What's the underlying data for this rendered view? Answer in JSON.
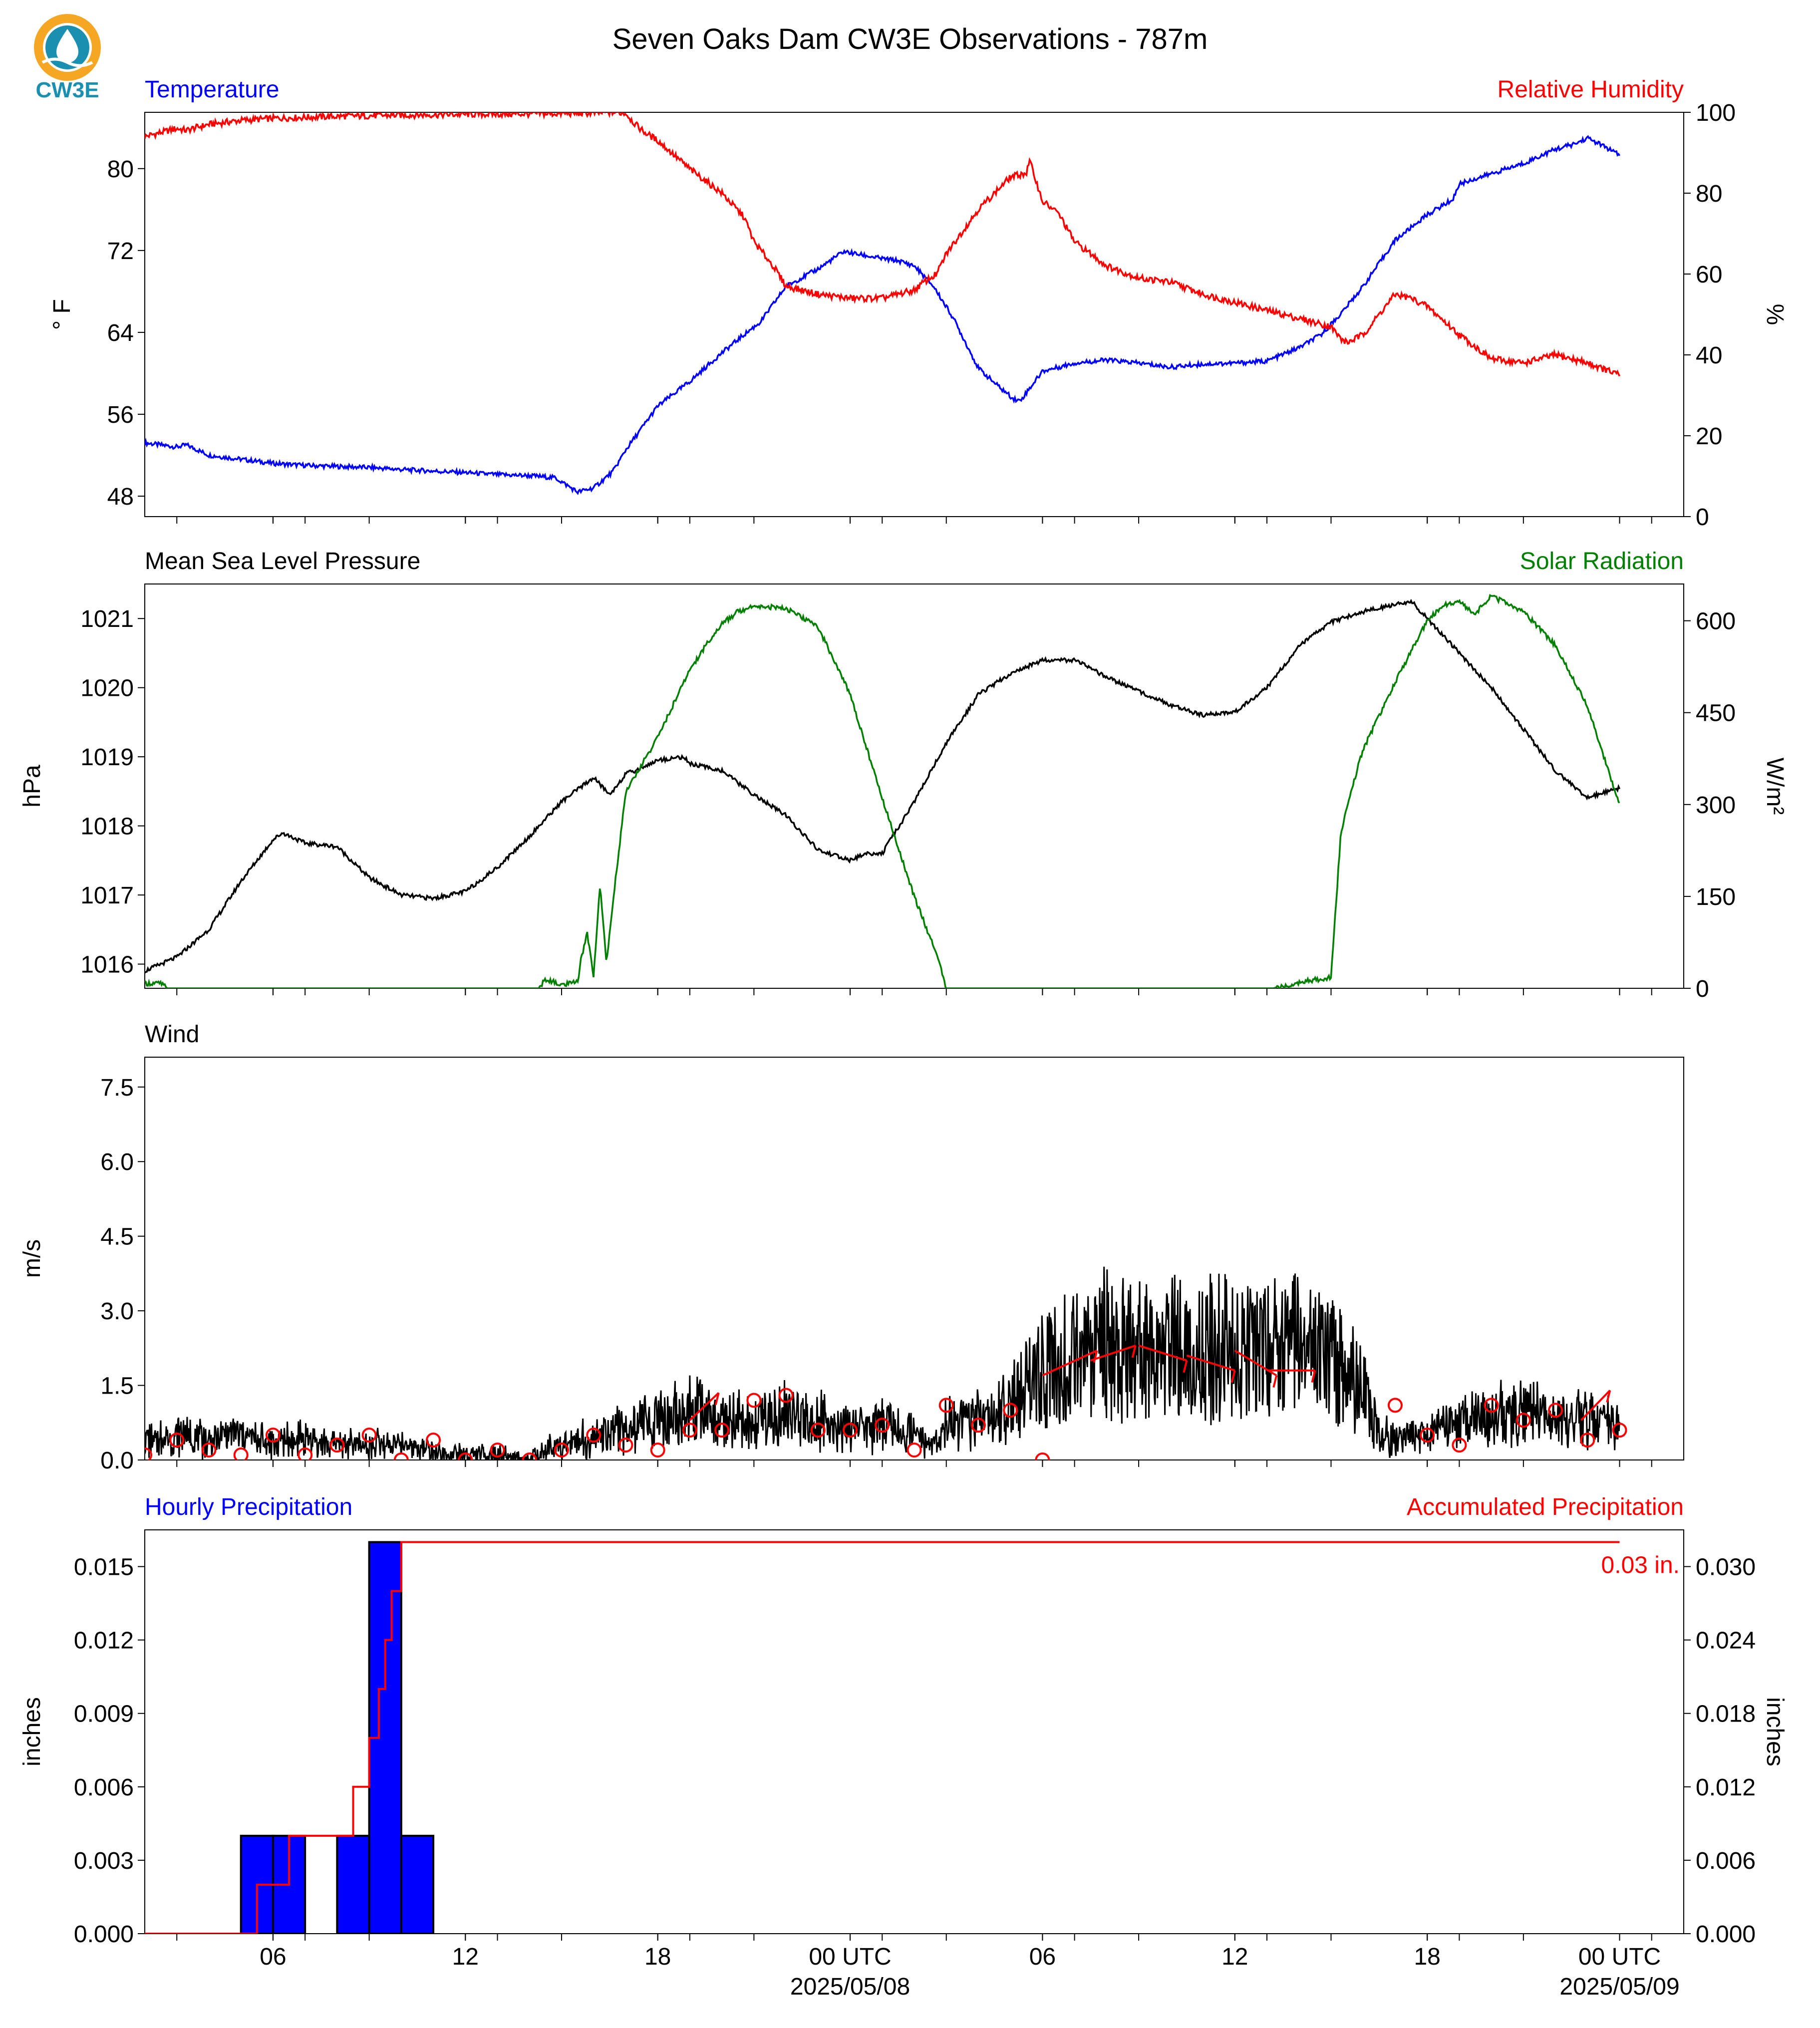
{
  "title": "Seven Oaks Dam CW3E Observations - 787m",
  "logo": {
    "text": "CW3E",
    "color": "#1b8fb0",
    "accent": "#f5a623"
  },
  "colors": {
    "temp": "#0000ff",
    "rh": "#ff0000",
    "pressure": "#000000",
    "solar": "#008000",
    "wind": "#000000",
    "barb": "#ff0000",
    "precip_bar": "#0000ff",
    "accum": "#ff0000"
  },
  "time_axis": {
    "start_hour": 0,
    "end_hour": 48,
    "tick_hours": [
      1,
      4,
      5,
      7,
      10,
      11,
      13,
      16,
      17,
      19,
      22,
      23,
      25,
      28,
      29,
      31,
      34,
      35,
      37,
      40,
      41,
      43,
      46,
      47
    ],
    "labels": [
      {
        "hour": 4,
        "text": "06"
      },
      {
        "hour": 10,
        "text": "12"
      },
      {
        "hour": 16,
        "text": "18"
      },
      {
        "hour": 22,
        "text": "00 UTC",
        "sub": "2025/05/08"
      },
      {
        "hour": 28,
        "text": "06"
      },
      {
        "hour": 34,
        "text": "12"
      },
      {
        "hour": 40,
        "text": "18"
      },
      {
        "hour": 46,
        "text": "00 UTC",
        "sub": "2025/05/09"
      }
    ]
  },
  "chart_data": [
    {
      "type": "line",
      "left_title": "Temperature",
      "right_title": "Relative Humidity",
      "ylabel": "° F",
      "ylabel_right": "%",
      "ylim": [
        46,
        85.5
      ],
      "yticks": [
        48,
        56,
        64,
        72,
        80
      ],
      "ylim_right": [
        0,
        100
      ],
      "yticks_right": [
        0,
        20,
        40,
        60,
        80,
        100
      ],
      "series": [
        {
          "name": "Temperature",
          "axis": "left",
          "color": "#0000ff",
          "x": [
            0,
            1,
            1.3,
            2,
            3,
            4,
            5,
            6,
            7,
            8,
            10,
            11,
            12,
            12.8,
            13.5,
            14,
            14.6,
            15,
            16,
            17,
            18,
            18.7,
            19.2,
            20,
            21,
            21.8,
            22.3,
            23,
            23.5,
            24,
            24.6,
            25.2,
            26,
            26.6,
            27.1,
            27.3,
            28,
            29,
            30,
            31,
            32,
            33,
            34,
            35,
            36,
            36.7,
            37.3,
            38,
            39,
            40,
            40.8,
            41,
            42,
            43,
            44,
            44.6,
            45,
            45.5,
            46
          ],
          "values": [
            53.2,
            52.8,
            53.0,
            52.0,
            51.6,
            51.2,
            51.0,
            50.9,
            50.8,
            50.6,
            50.3,
            50.1,
            50.0,
            49.8,
            48.4,
            48.8,
            50.4,
            52.5,
            56.8,
            59.2,
            62.0,
            63.8,
            65.0,
            68.5,
            70.2,
            71.9,
            71.6,
            71.2,
            71.0,
            70.5,
            68.5,
            65.5,
            60.5,
            58.8,
            57.5,
            57.3,
            60.2,
            61.0,
            61.3,
            61.0,
            60.6,
            60.9,
            61.0,
            61.2,
            62.5,
            63.8,
            65.8,
            68.5,
            73.0,
            75.5,
            77.0,
            78.5,
            79.5,
            80.5,
            81.9,
            82.4,
            83.0,
            82.2,
            81.3
          ]
        },
        {
          "name": "Relative Humidity",
          "axis": "right",
          "color": "#ff0000",
          "x": [
            0,
            0.5,
            1,
            1.3,
            1.5,
            2,
            3,
            4,
            6,
            8,
            10,
            12,
            14,
            14.6,
            15,
            15.3,
            15.6,
            16,
            17,
            18,
            18.7,
            19,
            19.6,
            20,
            21,
            22,
            23,
            23.5,
            24,
            24.3,
            24.7,
            25,
            26,
            26.5,
            27,
            27.5,
            27.6,
            28,
            28.5,
            29,
            30,
            31,
            32,
            33,
            34,
            35,
            36,
            37,
            37.3,
            37.5,
            38,
            38.5,
            39,
            39.5,
            40,
            41,
            42,
            43,
            44,
            45,
            46
          ],
          "values": [
            94,
            95,
            96,
            95.5,
            96,
            97,
            98,
            98.5,
            99,
            99.3,
            99.5,
            99.6,
            99.8,
            100,
            99.8,
            97,
            95,
            93,
            86,
            80,
            74,
            68,
            62,
            57,
            55,
            54,
            54,
            55,
            56,
            58,
            60,
            65,
            76,
            80,
            84,
            85,
            88,
            78,
            75,
            68,
            62,
            59,
            58,
            55,
            53,
            51,
            49,
            47,
            44,
            43,
            45,
            50,
            55,
            54,
            52,
            45,
            39,
            38,
            40,
            38,
            35
          ]
        }
      ]
    },
    {
      "type": "line",
      "left_title": "Mean Sea Level Pressure",
      "right_title": "Solar Radiation",
      "ylabel": "hPa",
      "ylabel_right": "W/m²",
      "ylim": [
        1015.65,
        1021.5
      ],
      "yticks": [
        1016,
        1017,
        1018,
        1019,
        1020,
        1021
      ],
      "ylim_right": [
        0,
        660
      ],
      "yticks_right": [
        0,
        150,
        300,
        450,
        600
      ],
      "series": [
        {
          "name": "Mean Sea Level Pressure",
          "axis": "left",
          "color": "#000000",
          "x": [
            0,
            1,
            2,
            3,
            4,
            4.3,
            5,
            6,
            7,
            8,
            9,
            10,
            11,
            12,
            13,
            14,
            14.5,
            15,
            15.3,
            16,
            16.8,
            17,
            18,
            19,
            20,
            21,
            22,
            22.5,
            23,
            24,
            25,
            26,
            27,
            28,
            29,
            30,
            31,
            32,
            32.3,
            33,
            34,
            35,
            36,
            37,
            38,
            39,
            39.5,
            40,
            41,
            42,
            43,
            44,
            45,
            45.6,
            46
          ],
          "values": [
            1015.9,
            1016.1,
            1016.5,
            1017.2,
            1017.8,
            1017.9,
            1017.75,
            1017.7,
            1017.25,
            1017.0,
            1016.95,
            1017.05,
            1017.4,
            1017.85,
            1018.35,
            1018.7,
            1018.45,
            1018.75,
            1018.8,
            1018.95,
            1019.0,
            1018.9,
            1018.8,
            1018.45,
            1018.15,
            1017.65,
            1017.5,
            1017.6,
            1017.6,
            1018.35,
            1019.2,
            1019.9,
            1020.2,
            1020.4,
            1020.4,
            1020.15,
            1019.95,
            1019.75,
            1019.7,
            1019.6,
            1019.65,
            1020.0,
            1020.6,
            1020.95,
            1021.1,
            1021.2,
            1021.25,
            1021.0,
            1020.5,
            1020.0,
            1019.4,
            1018.8,
            1018.4,
            1018.5,
            1018.55
          ]
        },
        {
          "name": "Solar Radiation",
          "axis": "right",
          "color": "#008000",
          "x": [
            0,
            0.5,
            0.7,
            1,
            3,
            5,
            7,
            9,
            11,
            12.3,
            12.5,
            13,
            13.5,
            13.6,
            13.8,
            14,
            14.2,
            14.4,
            14.6,
            15,
            16,
            17,
            17.5,
            18,
            18.5,
            19,
            20,
            21,
            22,
            23,
            24,
            24.7,
            25,
            26,
            27,
            28,
            30,
            33,
            35.2,
            36,
            37,
            37.3,
            37.5,
            38,
            39,
            40,
            40.5,
            41,
            41.5,
            41.8,
            42,
            43,
            44,
            45,
            46
          ],
          "values": [
            8,
            8,
            0,
            0,
            0,
            0,
            0,
            0,
            0,
            0,
            15,
            5,
            10,
            45,
            90,
            20,
            170,
            40,
            140,
            320,
            410,
            520,
            560,
            595,
            615,
            625,
            620,
            590,
            480,
            310,
            150,
            55,
            0,
            0,
            0,
            0,
            0,
            0,
            0,
            10,
            18,
            250,
            300,
            390,
            500,
            600,
            625,
            630,
            610,
            630,
            640,
            615,
            560,
            460,
            300
          ]
        }
      ]
    },
    {
      "type": "line",
      "left_title": "Wind",
      "ylabel": "m/s",
      "ylim": [
        0,
        8.1
      ],
      "yticks": [
        0.0,
        1.5,
        3.0,
        4.5,
        6.0,
        7.5
      ],
      "tick_labels": [
        "0.0",
        "1.5",
        "3.0",
        "4.5",
        "6.0",
        "7.5"
      ],
      "series": [
        {
          "name": "Wind",
          "color": "#000000",
          "x": [
            0,
            1,
            2,
            3,
            4,
            5,
            6,
            7,
            8,
            9,
            10,
            11,
            12,
            12.5,
            13,
            14,
            15,
            16,
            17,
            18,
            19,
            20,
            21,
            22,
            23,
            24,
            24.5,
            25,
            26,
            27,
            28,
            29,
            30,
            31,
            32,
            33,
            34,
            35,
            36,
            37,
            38,
            38.5,
            39,
            40,
            41,
            42,
            43,
            44,
            45,
            46
          ],
          "values": [
            0.4,
            0.5,
            0.4,
            0.5,
            0.35,
            0.45,
            0.3,
            0.3,
            0.3,
            0.2,
            0.1,
            0.1,
            0.0,
            0.2,
            0.3,
            0.5,
            0.6,
            0.8,
            1.0,
            0.9,
            0.7,
            0.9,
            0.8,
            0.6,
            0.7,
            0.5,
            0.3,
            0.7,
            0.8,
            1.1,
            1.8,
            2.0,
            2.3,
            2.1,
            2.2,
            2.2,
            2.3,
            2.2,
            2.3,
            2.1,
            1.4,
            0.5,
            0.4,
            0.5,
            0.8,
            0.9,
            0.9,
            0.8,
            0.8,
            0.7
          ]
        }
      ],
      "barbs_circle_hours": [
        0,
        1,
        2,
        3,
        4,
        5,
        6,
        7,
        8,
        9,
        10,
        11,
        12,
        13,
        14,
        15,
        16,
        17,
        18,
        19,
        20,
        21,
        22,
        23,
        24,
        25,
        26,
        27,
        28,
        39,
        40,
        41,
        42,
        43,
        44,
        45,
        46
      ],
      "barbs_circle_speeds": [
        0.1,
        0.4,
        0.2,
        0.1,
        0.5,
        0.1,
        0.3,
        0.5,
        0.0,
        0.4,
        0.0,
        0.2,
        0.0,
        0.2,
        0.5,
        0.3,
        0.2,
        0.6,
        0.6,
        1.2,
        1.3,
        0.6,
        0.6,
        0.7,
        0.2,
        1.1,
        0.7,
        1.0,
        0.0,
        1.1,
        0.5,
        0.3,
        1.1,
        0.8,
        1.0,
        0.4,
        0.6
      ],
      "barbs_flag": [
        {
          "hour": 17.0,
          "speed": 0.8,
          "dx": 0.9,
          "dy": 0.55
        },
        {
          "hour": 28.0,
          "speed": 1.7,
          "dx": 1.7,
          "dy": 0.5
        },
        {
          "hour": 29.5,
          "speed": 2.0,
          "dx": 1.4,
          "dy": 0.3
        },
        {
          "hour": 31.0,
          "speed": 2.3,
          "dx": 1.5,
          "dy": -0.3
        },
        {
          "hour": 32.5,
          "speed": 2.1,
          "dx": 1.5,
          "dy": -0.3
        },
        {
          "hour": 34.0,
          "speed": 2.2,
          "dx": 1.3,
          "dy": -0.5
        },
        {
          "hour": 35.0,
          "speed": 1.8,
          "dx": 1.5,
          "dy": 0.0
        },
        {
          "hour": 44.8,
          "speed": 0.8,
          "dx": 0.9,
          "dy": 0.6
        }
      ]
    },
    {
      "type": "bar",
      "left_title": "Hourly Precipitation",
      "right_title": "Accumulated Precipitation",
      "ylabel": "inches",
      "ylabel_right": "inches",
      "ylim": [
        0,
        0.0165
      ],
      "yticks": [
        0.0,
        0.003,
        0.006,
        0.009,
        0.012,
        0.015
      ],
      "tick_labels": [
        "0.000",
        "0.003",
        "0.006",
        "0.009",
        "0.012",
        "0.015"
      ],
      "ylim_right": [
        0,
        0.033
      ],
      "yticks_right": [
        0.0,
        0.006,
        0.012,
        0.018,
        0.024,
        0.03
      ],
      "tick_labels_right": [
        "0.000",
        "0.006",
        "0.012",
        "0.018",
        "0.024",
        "0.030"
      ],
      "bars": [
        {
          "start_hour": 3,
          "end_hour": 4,
          "value": 0.004
        },
        {
          "start_hour": 4,
          "end_hour": 5,
          "value": 0.004
        },
        {
          "start_hour": 6,
          "end_hour": 7,
          "value": 0.004
        },
        {
          "start_hour": 7,
          "end_hour": 8,
          "value": 0.016
        },
        {
          "start_hour": 8,
          "end_hour": 9,
          "value": 0.004
        }
      ],
      "accumulated": {
        "x": [
          0,
          3.5,
          3.5,
          4.5,
          4.5,
          6.5,
          6.5,
          7.0,
          7.0,
          7.3,
          7.3,
          7.5,
          7.5,
          7.7,
          7.7,
          8.0,
          8.0,
          8.5,
          8.5,
          46
        ],
        "values": [
          0,
          0,
          0.004,
          0.004,
          0.008,
          0.008,
          0.012,
          0.012,
          0.016,
          0.016,
          0.02,
          0.02,
          0.024,
          0.024,
          0.028,
          0.028,
          0.032,
          0.032,
          0.032,
          0.032
        ]
      },
      "total_label": "0.03 in."
    }
  ]
}
